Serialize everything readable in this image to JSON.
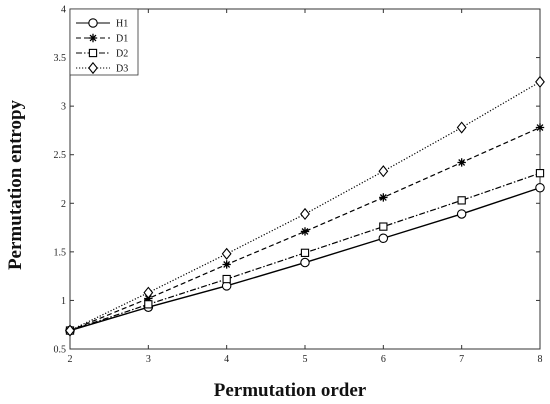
{
  "chart_data": {
    "type": "line",
    "title": "",
    "xlabel": "Permutation order",
    "ylabel": "Permutation entropy",
    "xlim": [
      2,
      8
    ],
    "ylim": [
      0.5,
      4
    ],
    "xticks": [
      2,
      3,
      4,
      5,
      6,
      7,
      8
    ],
    "yticks": [
      0.5,
      1,
      1.5,
      2,
      2.5,
      3,
      3.5,
      4
    ],
    "xtick_labels": [
      "2",
      "3",
      "4",
      "5",
      "6",
      "7",
      "8"
    ],
    "ytick_labels": [
      "0.5",
      "1",
      "1.5",
      "2",
      "2.5",
      "3",
      "3.5",
      "4"
    ],
    "x": [
      2,
      3,
      4,
      5,
      6,
      7,
      8
    ],
    "grid": false,
    "legend_position": "top-left",
    "series": [
      {
        "name": "H1",
        "values": [
          0.69,
          0.93,
          1.15,
          1.39,
          1.64,
          1.89,
          2.16
        ],
        "line_style": "solid",
        "marker": "circle",
        "color": "#000000"
      },
      {
        "name": "D1",
        "values": [
          0.69,
          1.02,
          1.37,
          1.71,
          2.06,
          2.42,
          2.78
        ],
        "line_style": "dashed",
        "marker": "asterisk",
        "color": "#000000"
      },
      {
        "name": "D2",
        "values": [
          0.69,
          0.96,
          1.22,
          1.49,
          1.76,
          2.03,
          2.31
        ],
        "line_style": "dashdot",
        "marker": "square",
        "color": "#000000"
      },
      {
        "name": "D3",
        "values": [
          0.69,
          1.08,
          1.48,
          1.89,
          2.33,
          2.78,
          3.25
        ],
        "line_style": "dotted",
        "marker": "diamond",
        "color": "#000000"
      }
    ]
  }
}
